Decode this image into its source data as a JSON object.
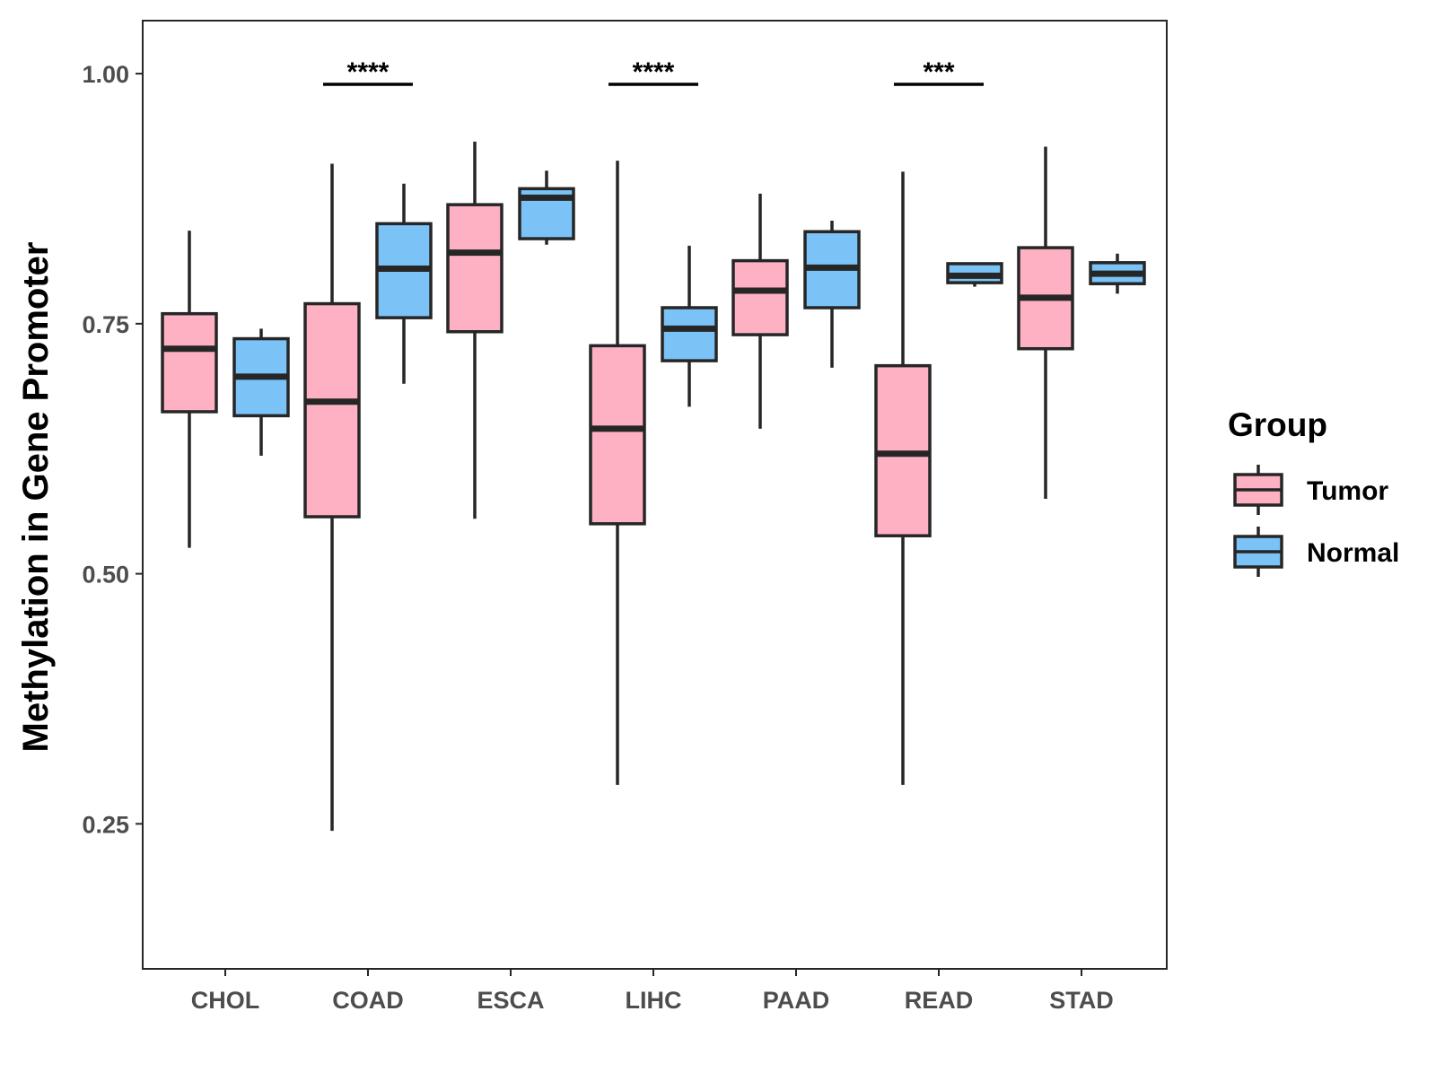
{
  "colors": {
    "tumor": "#FDB1C3",
    "normal": "#7BC3F7",
    "stroke": "#262626",
    "tick_text": "#4d4d4d"
  },
  "chart_data": {
    "type": "boxplot",
    "title": "",
    "xlabel": "",
    "ylabel": "Methylation in Gene Promoter",
    "ylim": [
      0.105,
      1.053
    ],
    "yticks": [
      0.25,
      0.5,
      0.75,
      1.0
    ],
    "ytick_labels": [
      "0.25",
      "0.50",
      "0.75",
      "1.00"
    ],
    "grid": false,
    "categories": [
      "CHOL",
      "COAD",
      "ESCA",
      "LIHC",
      "PAAD",
      "READ",
      "STAD"
    ],
    "series": [
      {
        "name": "Tumor",
        "color_key": "tumor",
        "boxes": [
          {
            "min": 0.526,
            "q1": 0.662,
            "median": 0.725,
            "q3": 0.76,
            "max": 0.843
          },
          {
            "min": 0.243,
            "q1": 0.557,
            "median": 0.672,
            "q3": 0.77,
            "max": 0.91
          },
          {
            "min": 0.555,
            "q1": 0.742,
            "median": 0.821,
            "q3": 0.869,
            "max": 0.932
          },
          {
            "min": 0.289,
            "q1": 0.55,
            "median": 0.645,
            "q3": 0.728,
            "max": 0.913
          },
          {
            "min": 0.645,
            "q1": 0.739,
            "median": 0.783,
            "q3": 0.813,
            "max": 0.88
          },
          {
            "min": 0.289,
            "q1": 0.538,
            "median": 0.62,
            "q3": 0.708,
            "max": 0.902
          },
          {
            "min": 0.575,
            "q1": 0.725,
            "median": 0.776,
            "q3": 0.826,
            "max": 0.927
          }
        ]
      },
      {
        "name": "Normal",
        "color_key": "normal",
        "boxes": [
          {
            "min": 0.618,
            "q1": 0.658,
            "median": 0.697,
            "q3": 0.735,
            "max": 0.745
          },
          {
            "min": 0.69,
            "q1": 0.756,
            "median": 0.805,
            "q3": 0.85,
            "max": 0.89
          },
          {
            "min": 0.829,
            "q1": 0.835,
            "median": 0.876,
            "q3": 0.885,
            "max": 0.903
          },
          {
            "min": 0.667,
            "q1": 0.713,
            "median": 0.745,
            "q3": 0.766,
            "max": 0.828
          },
          {
            "min": 0.706,
            "q1": 0.766,
            "median": 0.806,
            "q3": 0.842,
            "max": 0.853
          },
          {
            "min": 0.787,
            "q1": 0.791,
            "median": 0.798,
            "q3": 0.81,
            "max": 0.81
          },
          {
            "min": 0.78,
            "q1": 0.79,
            "median": 0.8,
            "q3": 0.811,
            "max": 0.82
          }
        ]
      }
    ],
    "significance": [
      {
        "category": "COAD",
        "label": "****"
      },
      {
        "category": "LIHC",
        "label": "****"
      },
      {
        "category": "READ",
        "label": "***"
      }
    ],
    "legend": {
      "title": "Group",
      "position": "right",
      "entries": [
        "Tumor",
        "Normal"
      ]
    }
  }
}
